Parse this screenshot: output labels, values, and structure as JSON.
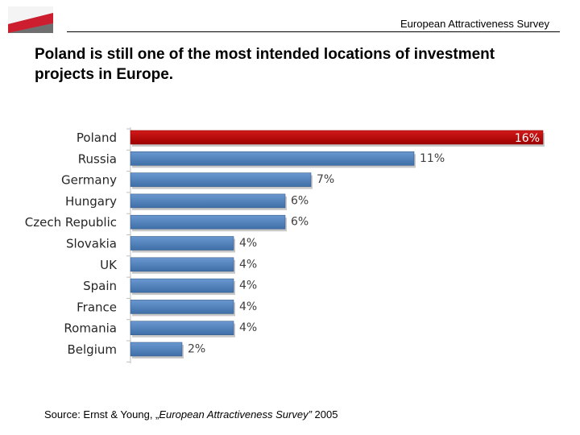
{
  "header": {
    "survey_label": "European Attractiveness Survey"
  },
  "slide": {
    "title": "Poland is still one of the most intended locations of investment projects in Europe."
  },
  "source": {
    "prefix": "Source: Ernst & Young, „",
    "italic": "European Attractiveness Survey”",
    "suffix": " 2005"
  },
  "colors": {
    "highlight": "#c00000",
    "bar": "#4f81bd",
    "flag_red": "#cc1e2e"
  },
  "chart_data": {
    "type": "bar",
    "orientation": "horizontal",
    "categories": [
      "Poland",
      "Russia",
      "Germany",
      "Hungary",
      "Czech Republic",
      "Slovakia",
      "UK",
      "Spain",
      "France",
      "Romania",
      "Belgium"
    ],
    "values": [
      16,
      11,
      7,
      6,
      6,
      4,
      4,
      4,
      4,
      4,
      2
    ],
    "labels": [
      "16%",
      "11%",
      "7%",
      "6%",
      "6%",
      "4%",
      "4%",
      "4%",
      "4%",
      "4%",
      "2%"
    ],
    "xlim": [
      0,
      16
    ],
    "highlight_category": "Poland",
    "grid": false
  }
}
